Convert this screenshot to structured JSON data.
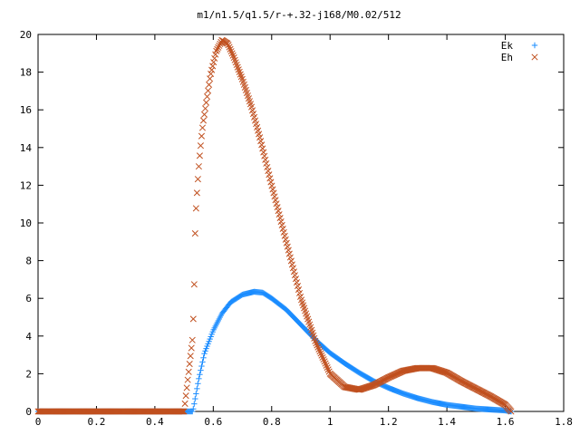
{
  "chart_data": {
    "type": "scatter",
    "title": "m1/n1.5/q1.5/r-+.32-j168/M0.02/512",
    "xlabel": "",
    "ylabel": "",
    "xlim": [
      0,
      1.8
    ],
    "ylim": [
      0,
      20
    ],
    "x_ticks": [
      "0",
      "0.2",
      "0.4",
      "0.6",
      "0.8",
      "1",
      "1.2",
      "1.4",
      "1.6",
      "1.8"
    ],
    "y_ticks": [
      "0",
      "2",
      "4",
      "6",
      "8",
      "10",
      "12",
      "14",
      "16",
      "18",
      "20"
    ],
    "grid": false,
    "legend_position": "top-right",
    "series": [
      {
        "name": "Ek",
        "marker": "plus",
        "color": "#1a8cff",
        "x": [
          0,
          0.1,
          0.2,
          0.3,
          0.4,
          0.5,
          0.53,
          0.55,
          0.57,
          0.6,
          0.63,
          0.66,
          0.7,
          0.74,
          0.77,
          0.8,
          0.85,
          0.9,
          0.95,
          1.0,
          1.05,
          1.1,
          1.15,
          1.2,
          1.25,
          1.3,
          1.35,
          1.4,
          1.45,
          1.5,
          1.55,
          1.6,
          1.62
        ],
        "y": [
          0,
          0,
          0,
          0,
          0,
          0,
          0,
          1.7,
          3.1,
          4.3,
          5.2,
          5.8,
          6.2,
          6.35,
          6.3,
          6.0,
          5.4,
          4.6,
          3.8,
          3.1,
          2.55,
          2.05,
          1.6,
          1.25,
          0.95,
          0.7,
          0.5,
          0.35,
          0.25,
          0.15,
          0.1,
          0.05,
          0
        ]
      },
      {
        "name": "Eh",
        "marker": "cross",
        "color": "#c0501f",
        "x": [
          0,
          0.1,
          0.2,
          0.3,
          0.4,
          0.5,
          0.53,
          0.535,
          0.537,
          0.54,
          0.545,
          0.55,
          0.555,
          0.56,
          0.565,
          0.575,
          0.59,
          0.61,
          0.63,
          0.65,
          0.67,
          0.7,
          0.73,
          0.76,
          0.8,
          0.85,
          0.9,
          0.95,
          1.0,
          1.05,
          1.1,
          1.15,
          1.2,
          1.25,
          1.3,
          1.35,
          1.4,
          1.45,
          1.5,
          1.55,
          1.6,
          1.62
        ],
        "y": [
          0,
          0,
          0,
          0,
          0,
          0,
          4.0,
          6.9,
          9.0,
          10.5,
          11.8,
          12.9,
          13.8,
          14.6,
          15.3,
          16.3,
          17.8,
          19.1,
          19.7,
          19.5,
          18.8,
          17.6,
          16.2,
          14.5,
          12.0,
          9.0,
          6.0,
          3.7,
          2.0,
          1.3,
          1.15,
          1.4,
          1.8,
          2.15,
          2.3,
          2.3,
          2.05,
          1.6,
          1.2,
          0.8,
          0.35,
          0
        ]
      }
    ]
  }
}
